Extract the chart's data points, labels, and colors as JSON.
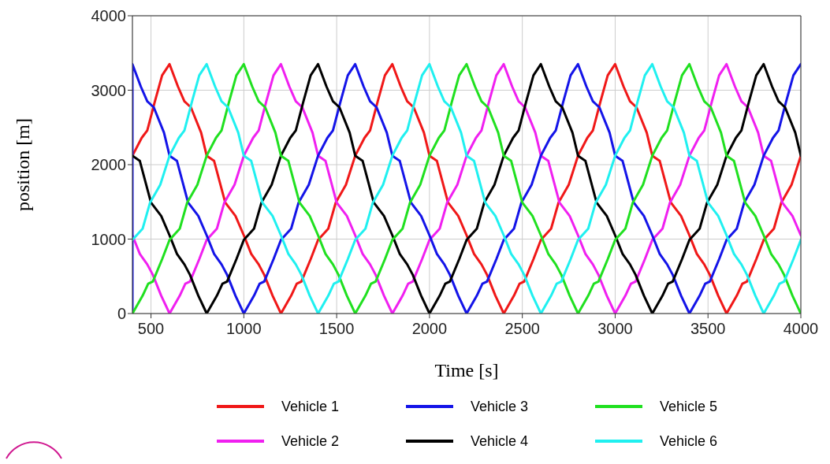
{
  "chart_data": {
    "type": "line",
    "xlabel": "Time [s]",
    "ylabel": "position [m]",
    "xlim": [
      400,
      4000
    ],
    "xticks": [
      500,
      1000,
      1500,
      2000,
      2500,
      3000,
      3500,
      4000
    ],
    "ylim": [
      0,
      4000
    ],
    "yticks": [
      0,
      1000,
      2000,
      3000,
      4000
    ],
    "grid": true,
    "legend": "bottom",
    "marker": "none",
    "line_style": "solid",
    "series": [
      {
        "name": "Vehicle 1",
        "color": "#f01818",
        "x": [
          400,
          450,
          480,
          520,
          560,
          600,
          645,
          680,
          715,
          770,
          800,
          840,
          900,
          955,
          1000,
          1040,
          1080,
          1110,
          1155,
          1200,
          1255,
          1285,
          1310,
          1360,
          1400,
          1455,
          1495,
          1550,
          1600,
          1650,
          1680,
          1720,
          1760,
          1800,
          1845,
          1880,
          1915,
          1970,
          2000,
          2040,
          2100,
          2155,
          2200,
          2240,
          2280,
          2310,
          2355,
          2400,
          2455,
          2485,
          2510,
          2560,
          2600,
          2655,
          2695,
          2750,
          2800,
          2850,
          2880,
          2920,
          2960,
          3000,
          3045,
          3080,
          3115,
          3170,
          3200,
          3240,
          3300,
          3355,
          3400,
          3440,
          3480,
          3510,
          3555,
          3600,
          3655,
          3685,
          3710,
          3760,
          3800,
          3855,
          3895,
          3950,
          4000
        ],
        "values": [
          2120,
          2360,
          2460,
          2840,
          3200,
          3350,
          3050,
          2850,
          2770,
          2430,
          2120,
          2050,
          1490,
          1310,
          1050,
          800,
          660,
          520,
          240,
          0,
          240,
          400,
          430,
          730,
          990,
          1140,
          1490,
          1730,
          2120,
          2360,
          2460,
          2840,
          3200,
          3350,
          3050,
          2850,
          2770,
          2430,
          2120,
          2050,
          1490,
          1310,
          1050,
          800,
          660,
          520,
          240,
          0,
          240,
          400,
          430,
          730,
          990,
          1140,
          1490,
          1730,
          2120,
          2360,
          2460,
          2840,
          3200,
          3350,
          3050,
          2850,
          2770,
          2430,
          2120,
          2050,
          1490,
          1310,
          1050,
          800,
          660,
          520,
          240,
          0,
          240,
          400,
          430,
          730,
          990,
          1140,
          1490,
          1730,
          2120
        ]
      },
      {
        "name": "Vehicle 2",
        "color": "#f020f0",
        "x": [
          400,
          440,
          480,
          510,
          555,
          600,
          655,
          685,
          710,
          760,
          800,
          855,
          895,
          950,
          1000,
          1050,
          1080,
          1120,
          1160,
          1200,
          1245,
          1280,
          1315,
          1370,
          1400,
          1440,
          1500,
          1555,
          1600,
          1640,
          1680,
          1710,
          1755,
          1800,
          1855,
          1885,
          1910,
          1960,
          2000,
          2055,
          2095,
          2150,
          2200,
          2250,
          2280,
          2320,
          2360,
          2400,
          2445,
          2480,
          2515,
          2570,
          2600,
          2640,
          2700,
          2755,
          2800,
          2840,
          2880,
          2910,
          2955,
          3000,
          3055,
          3085,
          3110,
          3160,
          3200,
          3255,
          3295,
          3350,
          3400,
          3450,
          3480,
          3520,
          3560,
          3600,
          3645,
          3680,
          3715,
          3770,
          3800,
          3840,
          3900,
          3955,
          4000
        ],
        "values": [
          1050,
          800,
          660,
          520,
          240,
          0,
          240,
          400,
          430,
          730,
          990,
          1140,
          1490,
          1730,
          2120,
          2360,
          2460,
          2840,
          3200,
          3350,
          3050,
          2850,
          2770,
          2430,
          2120,
          2050,
          1490,
          1310,
          1050,
          800,
          660,
          520,
          240,
          0,
          240,
          400,
          430,
          730,
          990,
          1140,
          1490,
          1730,
          2120,
          2360,
          2460,
          2840,
          3200,
          3350,
          3050,
          2850,
          2770,
          2430,
          2120,
          2050,
          1490,
          1310,
          1050,
          800,
          660,
          520,
          240,
          0,
          240,
          400,
          430,
          730,
          990,
          1140,
          1490,
          1730,
          2120,
          2360,
          2460,
          2840,
          3200,
          3350,
          3050,
          2850,
          2770,
          2430,
          2120,
          2050,
          1490,
          1310,
          1050
        ]
      },
      {
        "name": "Vehicle 3",
        "color": "#1414e8",
        "x": [
          400,
          400,
          445,
          480,
          515,
          570,
          600,
          640,
          700,
          755,
          800,
          840,
          880,
          910,
          955,
          1000,
          1055,
          1085,
          1110,
          1160,
          1200,
          1255,
          1295,
          1350,
          1400,
          1450,
          1480,
          1520,
          1560,
          1600,
          1645,
          1680,
          1715,
          1770,
          1800,
          1840,
          1900,
          1955,
          2000,
          2040,
          2080,
          2110,
          2155,
          2200,
          2255,
          2285,
          2310,
          2360,
          2400,
          2455,
          2495,
          2550,
          2600,
          2650,
          2680,
          2720,
          2760,
          2800,
          2845,
          2880,
          2915,
          2970,
          3000,
          3040,
          3100,
          3155,
          3200,
          3240,
          3280,
          3310,
          3355,
          3400,
          3455,
          3485,
          3510,
          3560,
          3600,
          3655,
          3695,
          3750,
          3800,
          3850,
          3880,
          3920,
          3960,
          4000
        ],
        "values": [
          0,
          3350,
          3050,
          2850,
          2770,
          2430,
          2120,
          2050,
          1490,
          1310,
          1050,
          800,
          660,
          520,
          240,
          0,
          240,
          400,
          430,
          730,
          990,
          1140,
          1490,
          1730,
          2120,
          2360,
          2460,
          2840,
          3200,
          3350,
          3050,
          2850,
          2770,
          2430,
          2120,
          2050,
          1490,
          1310,
          1050,
          800,
          660,
          520,
          240,
          0,
          240,
          400,
          430,
          730,
          990,
          1140,
          1490,
          1730,
          2120,
          2360,
          2460,
          2840,
          3200,
          3350,
          3050,
          2850,
          2770,
          2430,
          2120,
          2050,
          1490,
          1310,
          1050,
          800,
          660,
          520,
          240,
          0,
          240,
          400,
          430,
          730,
          990,
          1140,
          1490,
          1730,
          2120,
          2360,
          2460,
          2840,
          3200,
          3350
        ]
      },
      {
        "name": "Vehicle 4",
        "color": "#000000",
        "x": [
          400,
          440,
          500,
          555,
          600,
          640,
          680,
          710,
          755,
          800,
          855,
          885,
          910,
          960,
          1000,
          1055,
          1095,
          1150,
          1200,
          1250,
          1280,
          1320,
          1360,
          1400,
          1445,
          1480,
          1515,
          1570,
          1600,
          1640,
          1700,
          1755,
          1800,
          1840,
          1880,
          1910,
          1955,
          2000,
          2055,
          2085,
          2110,
          2160,
          2200,
          2255,
          2295,
          2350,
          2400,
          2450,
          2480,
          2520,
          2560,
          2600,
          2645,
          2680,
          2715,
          2770,
          2800,
          2840,
          2900,
          2955,
          3000,
          3040,
          3080,
          3110,
          3155,
          3200,
          3255,
          3285,
          3310,
          3360,
          3400,
          3455,
          3495,
          3550,
          3600,
          3650,
          3680,
          3720,
          3760,
          3800,
          3845,
          3880,
          3915,
          3970,
          4000
        ],
        "values": [
          2120,
          2050,
          1490,
          1310,
          1050,
          800,
          660,
          520,
          240,
          0,
          240,
          400,
          430,
          730,
          990,
          1140,
          1490,
          1730,
          2120,
          2360,
          2460,
          2840,
          3200,
          3350,
          3050,
          2850,
          2770,
          2430,
          2120,
          2050,
          1490,
          1310,
          1050,
          800,
          660,
          520,
          240,
          0,
          240,
          400,
          430,
          730,
          990,
          1140,
          1490,
          1730,
          2120,
          2360,
          2460,
          2840,
          3200,
          3350,
          3050,
          2850,
          2770,
          2430,
          2120,
          2050,
          1490,
          1310,
          1050,
          800,
          660,
          520,
          240,
          0,
          240,
          400,
          430,
          730,
          990,
          1140,
          1490,
          1730,
          2120,
          2360,
          2460,
          2840,
          3200,
          3350,
          3050,
          2850,
          2770,
          2430,
          2120
        ]
      },
      {
        "name": "Vehicle 5",
        "color": "#20e020",
        "x": [
          400,
          455,
          485,
          510,
          560,
          600,
          655,
          695,
          750,
          800,
          850,
          880,
          920,
          960,
          1000,
          1045,
          1080,
          1115,
          1170,
          1200,
          1240,
          1300,
          1355,
          1400,
          1440,
          1480,
          1510,
          1555,
          1600,
          1655,
          1685,
          1710,
          1760,
          1800,
          1855,
          1895,
          1950,
          2000,
          2050,
          2080,
          2120,
          2160,
          2200,
          2245,
          2280,
          2315,
          2370,
          2400,
          2440,
          2500,
          2555,
          2600,
          2640,
          2680,
          2710,
          2755,
          2800,
          2855,
          2885,
          2910,
          2960,
          3000,
          3055,
          3095,
          3150,
          3200,
          3250,
          3280,
          3320,
          3360,
          3400,
          3445,
          3480,
          3515,
          3570,
          3600,
          3640,
          3700,
          3755,
          3800,
          3840,
          3880,
          3910,
          3955,
          4000
        ],
        "values": [
          0,
          240,
          400,
          430,
          730,
          990,
          1140,
          1490,
          1730,
          2120,
          2360,
          2460,
          2840,
          3200,
          3350,
          3050,
          2850,
          2770,
          2430,
          2120,
          2050,
          1490,
          1310,
          1050,
          800,
          660,
          520,
          240,
          0,
          240,
          400,
          430,
          730,
          990,
          1140,
          1490,
          1730,
          2120,
          2360,
          2460,
          2840,
          3200,
          3350,
          3050,
          2850,
          2770,
          2430,
          2120,
          2050,
          1490,
          1310,
          1050,
          800,
          660,
          520,
          240,
          0,
          240,
          400,
          430,
          730,
          990,
          1140,
          1490,
          1730,
          2120,
          2360,
          2460,
          2840,
          3200,
          3350,
          3050,
          2850,
          2770,
          2430,
          2120,
          2050,
          1490,
          1310,
          1050,
          800,
          660,
          520,
          240,
          0
        ]
      },
      {
        "name": "Vehicle 6",
        "color": "#20f0f0",
        "x": [
          400,
          455,
          495,
          550,
          600,
          650,
          680,
          720,
          760,
          800,
          845,
          880,
          915,
          970,
          1000,
          1040,
          1100,
          1155,
          1200,
          1240,
          1280,
          1310,
          1355,
          1400,
          1455,
          1485,
          1510,
          1560,
          1600,
          1655,
          1695,
          1750,
          1800,
          1850,
          1880,
          1920,
          1960,
          2000,
          2045,
          2080,
          2115,
          2170,
          2200,
          2240,
          2300,
          2355,
          2400,
          2440,
          2480,
          2510,
          2555,
          2600,
          2655,
          2685,
          2710,
          2760,
          2800,
          2855,
          2895,
          2950,
          3000,
          3050,
          3080,
          3120,
          3160,
          3200,
          3245,
          3280,
          3315,
          3370,
          3400,
          3440,
          3500,
          3555,
          3600,
          3640,
          3680,
          3710,
          3755,
          3800,
          3855,
          3885,
          3910,
          3960,
          4000
        ],
        "values": [
          990,
          1140,
          1490,
          1730,
          2120,
          2360,
          2460,
          2840,
          3200,
          3350,
          3050,
          2850,
          2770,
          2430,
          2120,
          2050,
          1490,
          1310,
          1050,
          800,
          660,
          520,
          240,
          0,
          240,
          400,
          430,
          730,
          990,
          1140,
          1490,
          1730,
          2120,
          2360,
          2460,
          2840,
          3200,
          3350,
          3050,
          2850,
          2770,
          2430,
          2120,
          2050,
          1490,
          1310,
          1050,
          800,
          660,
          520,
          240,
          0,
          240,
          400,
          430,
          730,
          990,
          1140,
          1490,
          1730,
          2120,
          2360,
          2460,
          2840,
          3200,
          3350,
          3050,
          2850,
          2770,
          2430,
          2120,
          2050,
          1490,
          1310,
          1050,
          800,
          660,
          520,
          240,
          0,
          240,
          400,
          430,
          730,
          990
        ]
      }
    ]
  }
}
